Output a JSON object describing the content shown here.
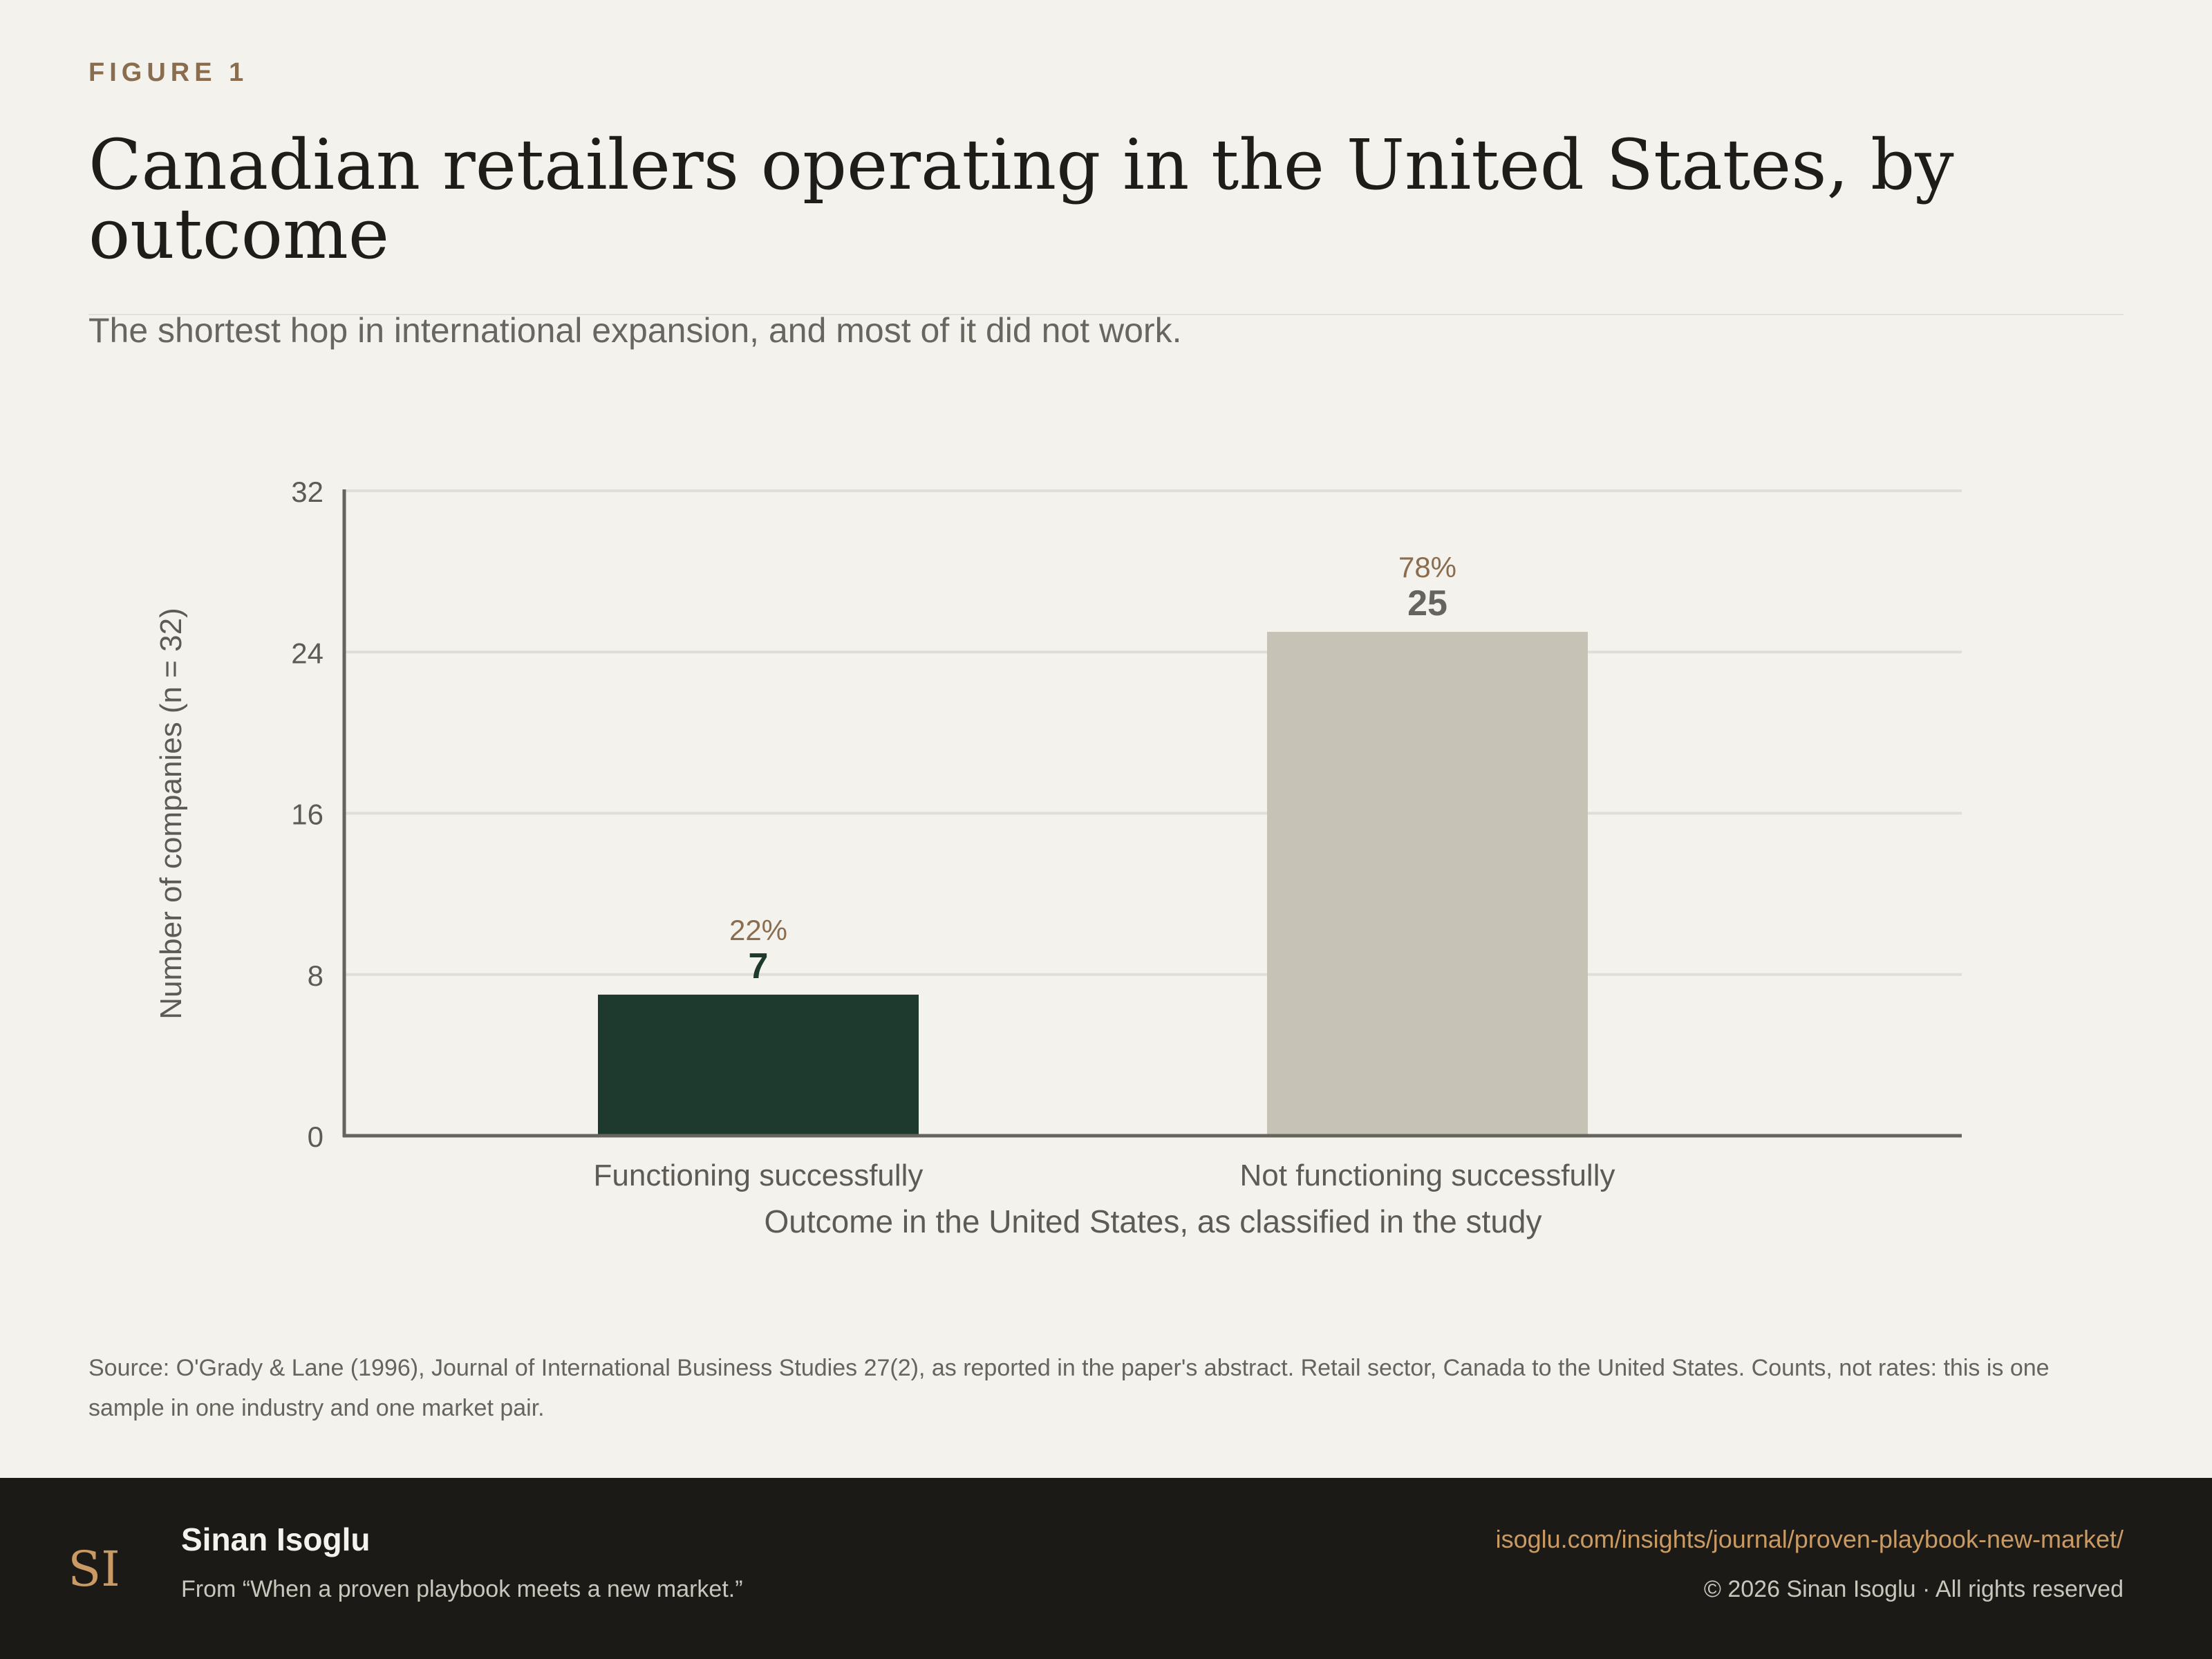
{
  "header": {
    "figure_label": "FIGURE 1",
    "title": "Canadian retailers operating in the United States, by outcome",
    "subtitle": "The shortest hop in international expansion, and most of it did not work."
  },
  "chart_data": {
    "type": "bar",
    "categories": [
      "Functioning successfully",
      "Not functioning successfully"
    ],
    "values": [
      7,
      25
    ],
    "percent_labels": [
      "22%",
      "78%"
    ],
    "bar_colors": [
      "#1e3a2f",
      "#c6c2b5"
    ],
    "value_label_colors": [
      "#1e3a2f",
      "#66645d"
    ],
    "title": "",
    "xlabel": "Outcome in the United States, as classified in the study",
    "ylabel": "Number of companies (n = 32)",
    "ylim": [
      0,
      32
    ],
    "yticks": [
      0,
      8,
      16,
      24,
      32
    ],
    "grid": true
  },
  "source": "Source: O'Grady & Lane (1996), Journal of International Business Studies 27(2), as reported in the paper's abstract. Retail sector, Canada to the United States. Counts, not rates: this is one sample in one industry and one market pair.",
  "footer": {
    "logo_text": "SI",
    "author": "Sinan Isoglu",
    "from": "From “When a proven playbook meets a new market.”",
    "url": "isoglu.com/insights/journal/proven-playbook-new-market/",
    "copyright": "© 2026 Sinan Isoglu · All rights reserved"
  },
  "colors": {
    "accent": "#8a6d4e",
    "background": "#f3f2ed",
    "footer_bg": "#1b1a16",
    "url": "#c99a63"
  }
}
